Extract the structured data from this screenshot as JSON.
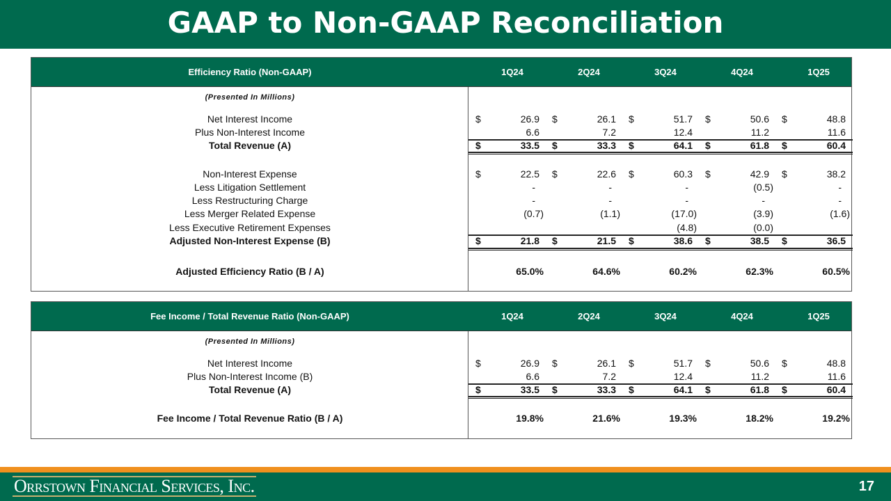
{
  "title": "GAAP to Non-GAAP Reconciliation",
  "quarters": [
    "1Q24",
    "2Q24",
    "3Q24",
    "4Q24",
    "1Q25"
  ],
  "table1": {
    "header": "Efficiency Ratio (Non-GAAP)",
    "subtitle": "(Presented In Millions)",
    "rows": [
      {
        "label": "Net Interest Income",
        "cur": true,
        "values": [
          "26.9",
          "26.1",
          "51.7",
          "50.6",
          "48.8"
        ]
      },
      {
        "label": "Plus Non-Interest Income",
        "values": [
          "6.6",
          "7.2",
          "12.4",
          "11.2",
          "11.6"
        ]
      },
      {
        "label": "Total Revenue (A)",
        "bold": true,
        "cur": true,
        "values": [
          "33.5",
          "33.3",
          "64.1",
          "61.8",
          "60.4"
        ]
      },
      {
        "label": "Non-Interest Expense",
        "cur": true,
        "values": [
          "22.5",
          "22.6",
          "60.3",
          "42.9",
          "38.2"
        ]
      },
      {
        "label": "Less Litigation Settlement",
        "values": [
          "-",
          "-",
          "-",
          "(0.5)",
          "-"
        ]
      },
      {
        "label": "Less Restructuring Charge",
        "values": [
          "-",
          "-",
          "-",
          "-",
          "-"
        ]
      },
      {
        "label": "Less Merger Related Expense",
        "values": [
          "(0.7)",
          "(1.1)",
          "(17.0)",
          "(3.9)",
          "(1.6)"
        ]
      },
      {
        "label": "Less Executive Retirement Expenses",
        "values": [
          "",
          "",
          "(4.8)",
          "(0.0)",
          ""
        ]
      },
      {
        "label": "Adjusted Non-Interest Expense (B)",
        "bold": true,
        "cur": true,
        "values": [
          "21.8",
          "21.5",
          "38.6",
          "38.5",
          "36.5"
        ]
      },
      {
        "label": "Adjusted Efficiency Ratio (B / A)",
        "bold": true,
        "values": [
          "65.0%",
          "64.6%",
          "60.2%",
          "62.3%",
          "60.5%"
        ]
      }
    ]
  },
  "table2": {
    "header": "Fee Income / Total Revenue Ratio (Non-GAAP)",
    "subtitle": "(Presented In Millions)",
    "rows": [
      {
        "label": "Net Interest Income",
        "cur": true,
        "values": [
          "26.9",
          "26.1",
          "51.7",
          "50.6",
          "48.8"
        ]
      },
      {
        "label": "Plus Non-Interest Income (B)",
        "values": [
          "6.6",
          "7.2",
          "12.4",
          "11.2",
          "11.6"
        ]
      },
      {
        "label": "Total Revenue (A)",
        "bold": true,
        "cur": true,
        "values": [
          "33.5",
          "33.3",
          "64.1",
          "61.8",
          "60.4"
        ]
      },
      {
        "label": "Fee Income / Total Revenue Ratio (B / A)",
        "bold": true,
        "values": [
          "19.8%",
          "21.6%",
          "19.3%",
          "18.2%",
          "19.2%"
        ]
      }
    ]
  },
  "currency_symbol": "$",
  "footer": {
    "company": "Orrstown Financial Services, Inc.",
    "page": "17"
  },
  "colors": {
    "green": "#006a4e",
    "orange": "#f0901e"
  }
}
